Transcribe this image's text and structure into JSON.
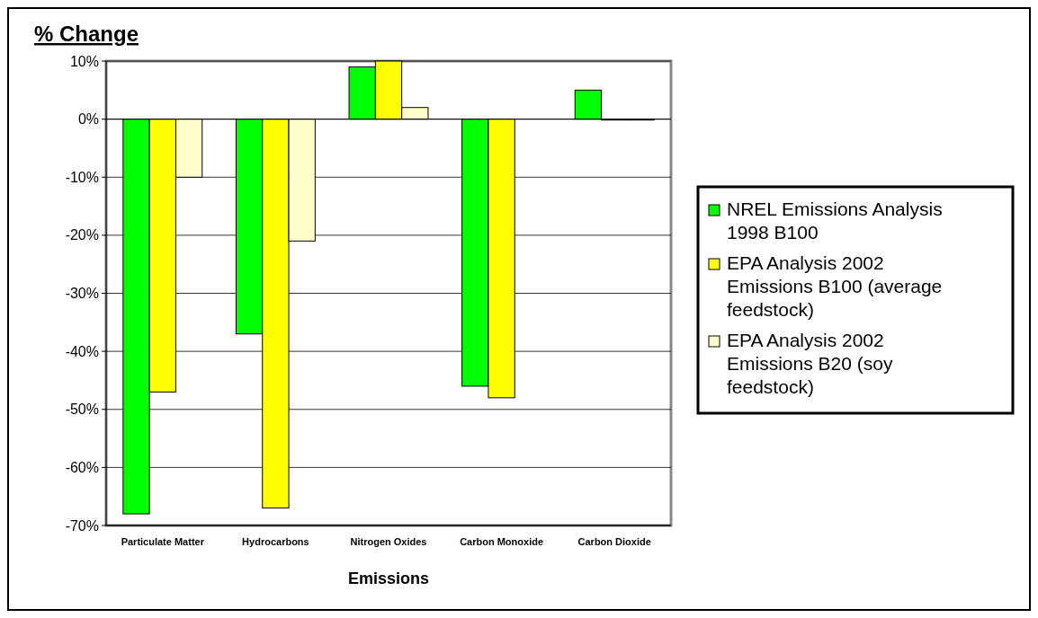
{
  "chart_data": {
    "type": "bar",
    "title": "% Change",
    "xlabel": "Emissions",
    "categories": [
      "Particulate Matter",
      "Hydrocarbons",
      "Nitrogen Oxides",
      "Carbon Monoxide",
      "Carbon Dioxide"
    ],
    "series": [
      {
        "name": "NREL Emissions Analysis 1998 B100",
        "color": "#00ff00",
        "values": [
          -68,
          -37,
          9,
          -46,
          5
        ]
      },
      {
        "name": "EPA Analysis 2002 Emissions B100 (average feedstock)",
        "color": "#ffff00",
        "values": [
          -47,
          -67,
          10,
          -48,
          0
        ]
      },
      {
        "name": "EPA Analysis 2002 Emissions B20 (soy feedstock)",
        "color": "#ffffcc",
        "values": [
          -10,
          -21,
          2,
          null,
          0
        ]
      }
    ],
    "ylim": [
      -70,
      10
    ],
    "yticks": [
      {
        "value": 10,
        "label": "10%"
      },
      {
        "value": 0,
        "label": "0%"
      },
      {
        "value": -10,
        "label": "-10%"
      },
      {
        "value": -20,
        "label": "-20%"
      },
      {
        "value": -30,
        "label": "-30%"
      },
      {
        "value": -40,
        "label": "-40%"
      },
      {
        "value": -50,
        "label": "-50%"
      },
      {
        "value": -60,
        "label": "-60%"
      },
      {
        "value": -70,
        "label": "-70%"
      }
    ],
    "grid": "y",
    "legend": "right"
  }
}
